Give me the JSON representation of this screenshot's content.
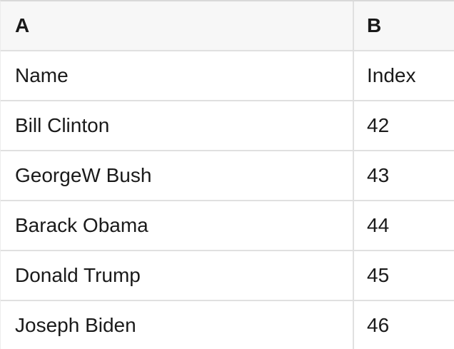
{
  "colors": {
    "header_bg": "#f7f7f7",
    "grid_line": "#e0e0e0",
    "top_border": "#d9d9d9",
    "left_border": "#ececec",
    "cell_bg": "#ffffff",
    "text": "#1a1a1a"
  },
  "table": {
    "column_headers": {
      "cells": [
        "A",
        "B"
      ]
    },
    "rows": [
      {
        "cells": [
          "Name",
          "Index"
        ]
      },
      {
        "cells": [
          "Bill Clinton",
          "42"
        ]
      },
      {
        "cells": [
          "GeorgeW Bush",
          "43"
        ]
      },
      {
        "cells": [
          "Barack Obama",
          "44"
        ]
      },
      {
        "cells": [
          "Donald Trump",
          "45"
        ]
      },
      {
        "cells": [
          "Joseph Biden",
          "46"
        ]
      }
    ]
  }
}
